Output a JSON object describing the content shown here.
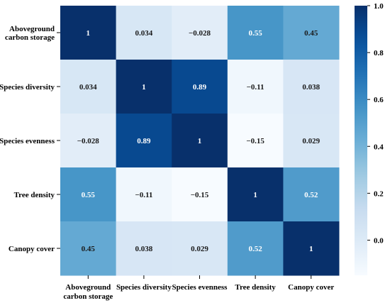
{
  "chart_data": {
    "type": "heatmap",
    "rows": [
      "Aboveground\ncarbon storage",
      "Species diversity",
      "Species evenness",
      "Tree density",
      "Canopy cover"
    ],
    "columns": [
      "Aboveground\ncarbon storage",
      "Species diversity",
      "Species evenness",
      "Tree density",
      "Canopy cover"
    ],
    "values": [
      [
        1,
        0.034,
        -0.028,
        0.55,
        0.45
      ],
      [
        0.034,
        1,
        0.89,
        -0.11,
        0.038
      ],
      [
        -0.028,
        0.89,
        1,
        -0.15,
        0.029
      ],
      [
        0.55,
        -0.11,
        -0.15,
        1,
        0.52
      ],
      [
        0.45,
        0.038,
        0.029,
        0.52,
        1
      ]
    ],
    "cell_labels": [
      [
        "1",
        "0.034",
        "−0.028",
        "0.55",
        "0.45"
      ],
      [
        "0.034",
        "1",
        "0.89",
        "−0.11",
        "0.038"
      ],
      [
        "−0.028",
        "0.89",
        "1",
        "−0.15",
        "0.029"
      ],
      [
        "0.55",
        "−0.11",
        "−0.15",
        "1",
        "0.52"
      ],
      [
        "0.45",
        "0.038",
        "0.029",
        "0.52",
        "1"
      ]
    ],
    "colorscale": "Blues",
    "vmin": -0.15,
    "vmax": 1.0,
    "colorbar_ticks": [
      0.0,
      0.2,
      0.4,
      0.6,
      0.8,
      1.0
    ],
    "colorbar_tick_labels": [
      "0.0",
      "0.2",
      "0.4",
      "0.6",
      "0.8",
      "1.0"
    ]
  }
}
